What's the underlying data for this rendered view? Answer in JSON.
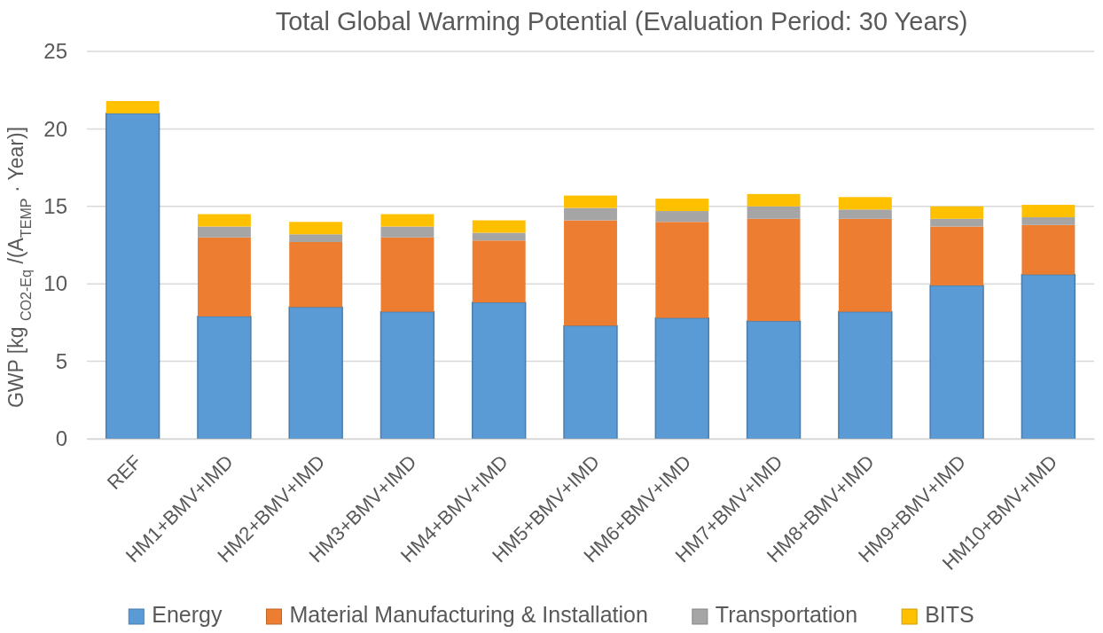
{
  "chart_data": {
    "type": "bar",
    "title": "Total Global Warming Potential (Evaluation Period: 30 Years)",
    "ylabel": "GWP [kg $_{CO2-Eq}$ /(A$_{TEMP}$ · Year)]",
    "categories": [
      "REF",
      "HM1+BMV+IMD",
      "HM2+BMV+IMD",
      "HM3+BMV+IMD",
      "HM4+BMV+IMD",
      "HM5+BMV+IMD",
      "HM6+BMV+IMD",
      "HM7+BMV+IMD",
      "HM8+BMV+IMD",
      "HM9+BMV+IMD",
      "HM10+BMV+IMD"
    ],
    "series": [
      {
        "name": "Energy",
        "color": "#5b9bd5",
        "values": [
          21.0,
          7.9,
          8.5,
          8.2,
          8.8,
          7.3,
          7.8,
          7.6,
          8.2,
          9.9,
          10.6
        ]
      },
      {
        "name": "Material Manufacturing & Installation",
        "color": "#ed7d31",
        "values": [
          0,
          5.1,
          4.2,
          4.8,
          4.0,
          6.8,
          6.2,
          6.6,
          6.0,
          3.8,
          3.2
        ]
      },
      {
        "name": "Transportation",
        "color": "#a5a5a5",
        "values": [
          0,
          0.7,
          0.5,
          0.7,
          0.5,
          0.8,
          0.7,
          0.8,
          0.6,
          0.5,
          0.5
        ]
      },
      {
        "name": "BITS",
        "color": "#ffc000",
        "values": [
          0.8,
          0.8,
          0.8,
          0.8,
          0.8,
          0.8,
          0.8,
          0.8,
          0.8,
          0.8,
          0.8
        ]
      }
    ],
    "stacked": true,
    "ylim": [
      0,
      25
    ],
    "yticks": [
      0,
      5,
      10,
      15,
      20,
      25
    ],
    "grid": "y",
    "legend": "bottom"
  }
}
